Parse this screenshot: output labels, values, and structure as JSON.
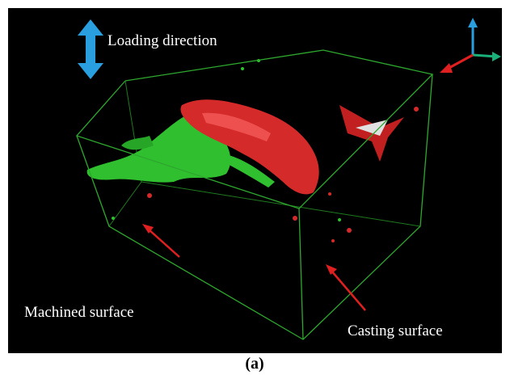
{
  "figure": {
    "labels": {
      "loading_direction": "Loading direction",
      "machined_surface": "Machined surface",
      "casting_surface": "Casting surface"
    },
    "caption": "(a)"
  }
}
